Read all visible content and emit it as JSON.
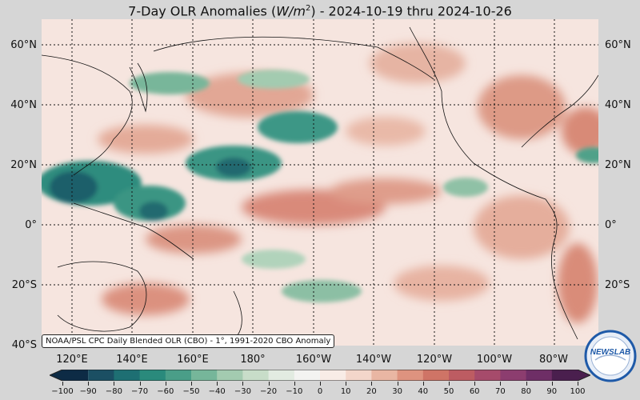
{
  "title": {
    "prefix": "7-Day OLR Anomalies (",
    "unit_base": "W/m",
    "unit_exp": "2",
    "suffix": ") - 2024-10-19 thru 2024-10-26"
  },
  "lat_labels": [
    "60°N",
    "40°N",
    "20°N",
    "0°",
    "20°S",
    "40°S"
  ],
  "lon_labels": [
    "120°E",
    "140°E",
    "160°E",
    "180°",
    "160°W",
    "140°W",
    "120°W",
    "100°W",
    "80°W"
  ],
  "credit": "NOAA/PSL CPC Daily Blended OLR (CBO) - 1°, 1991-2020 CBO Anomaly",
  "colorbar": {
    "ticks": [
      "−100",
      "−90",
      "−80",
      "−70",
      "−60",
      "−50",
      "−40",
      "−30",
      "−20",
      "−10",
      "0",
      "10",
      "20",
      "30",
      "40",
      "50",
      "60",
      "70",
      "80",
      "90",
      "100"
    ],
    "colors": [
      "#0d2b45",
      "#1b4f63",
      "#1e6f73",
      "#2a8a7c",
      "#4a9e88",
      "#76b69a",
      "#a3cbb0",
      "#c8ddc9",
      "#e2ebe1",
      "#f3f3f1",
      "#f8ece6",
      "#f3d6ca",
      "#e9b6a3",
      "#de937f",
      "#cf7466",
      "#bd5c62",
      "#a64b6b",
      "#8c3d6f",
      "#6e2e66",
      "#4a1f4e"
    ]
  },
  "logo": {
    "text": "NEWSLAB",
    "colors": {
      "ring": "#1f5aa8",
      "fill": "#e8eef7"
    }
  },
  "palette": {
    "background": "#d6d6d6",
    "map_base": "#f6e5df",
    "wet": "#2a8a7c",
    "dry": "#d98a7a"
  }
}
